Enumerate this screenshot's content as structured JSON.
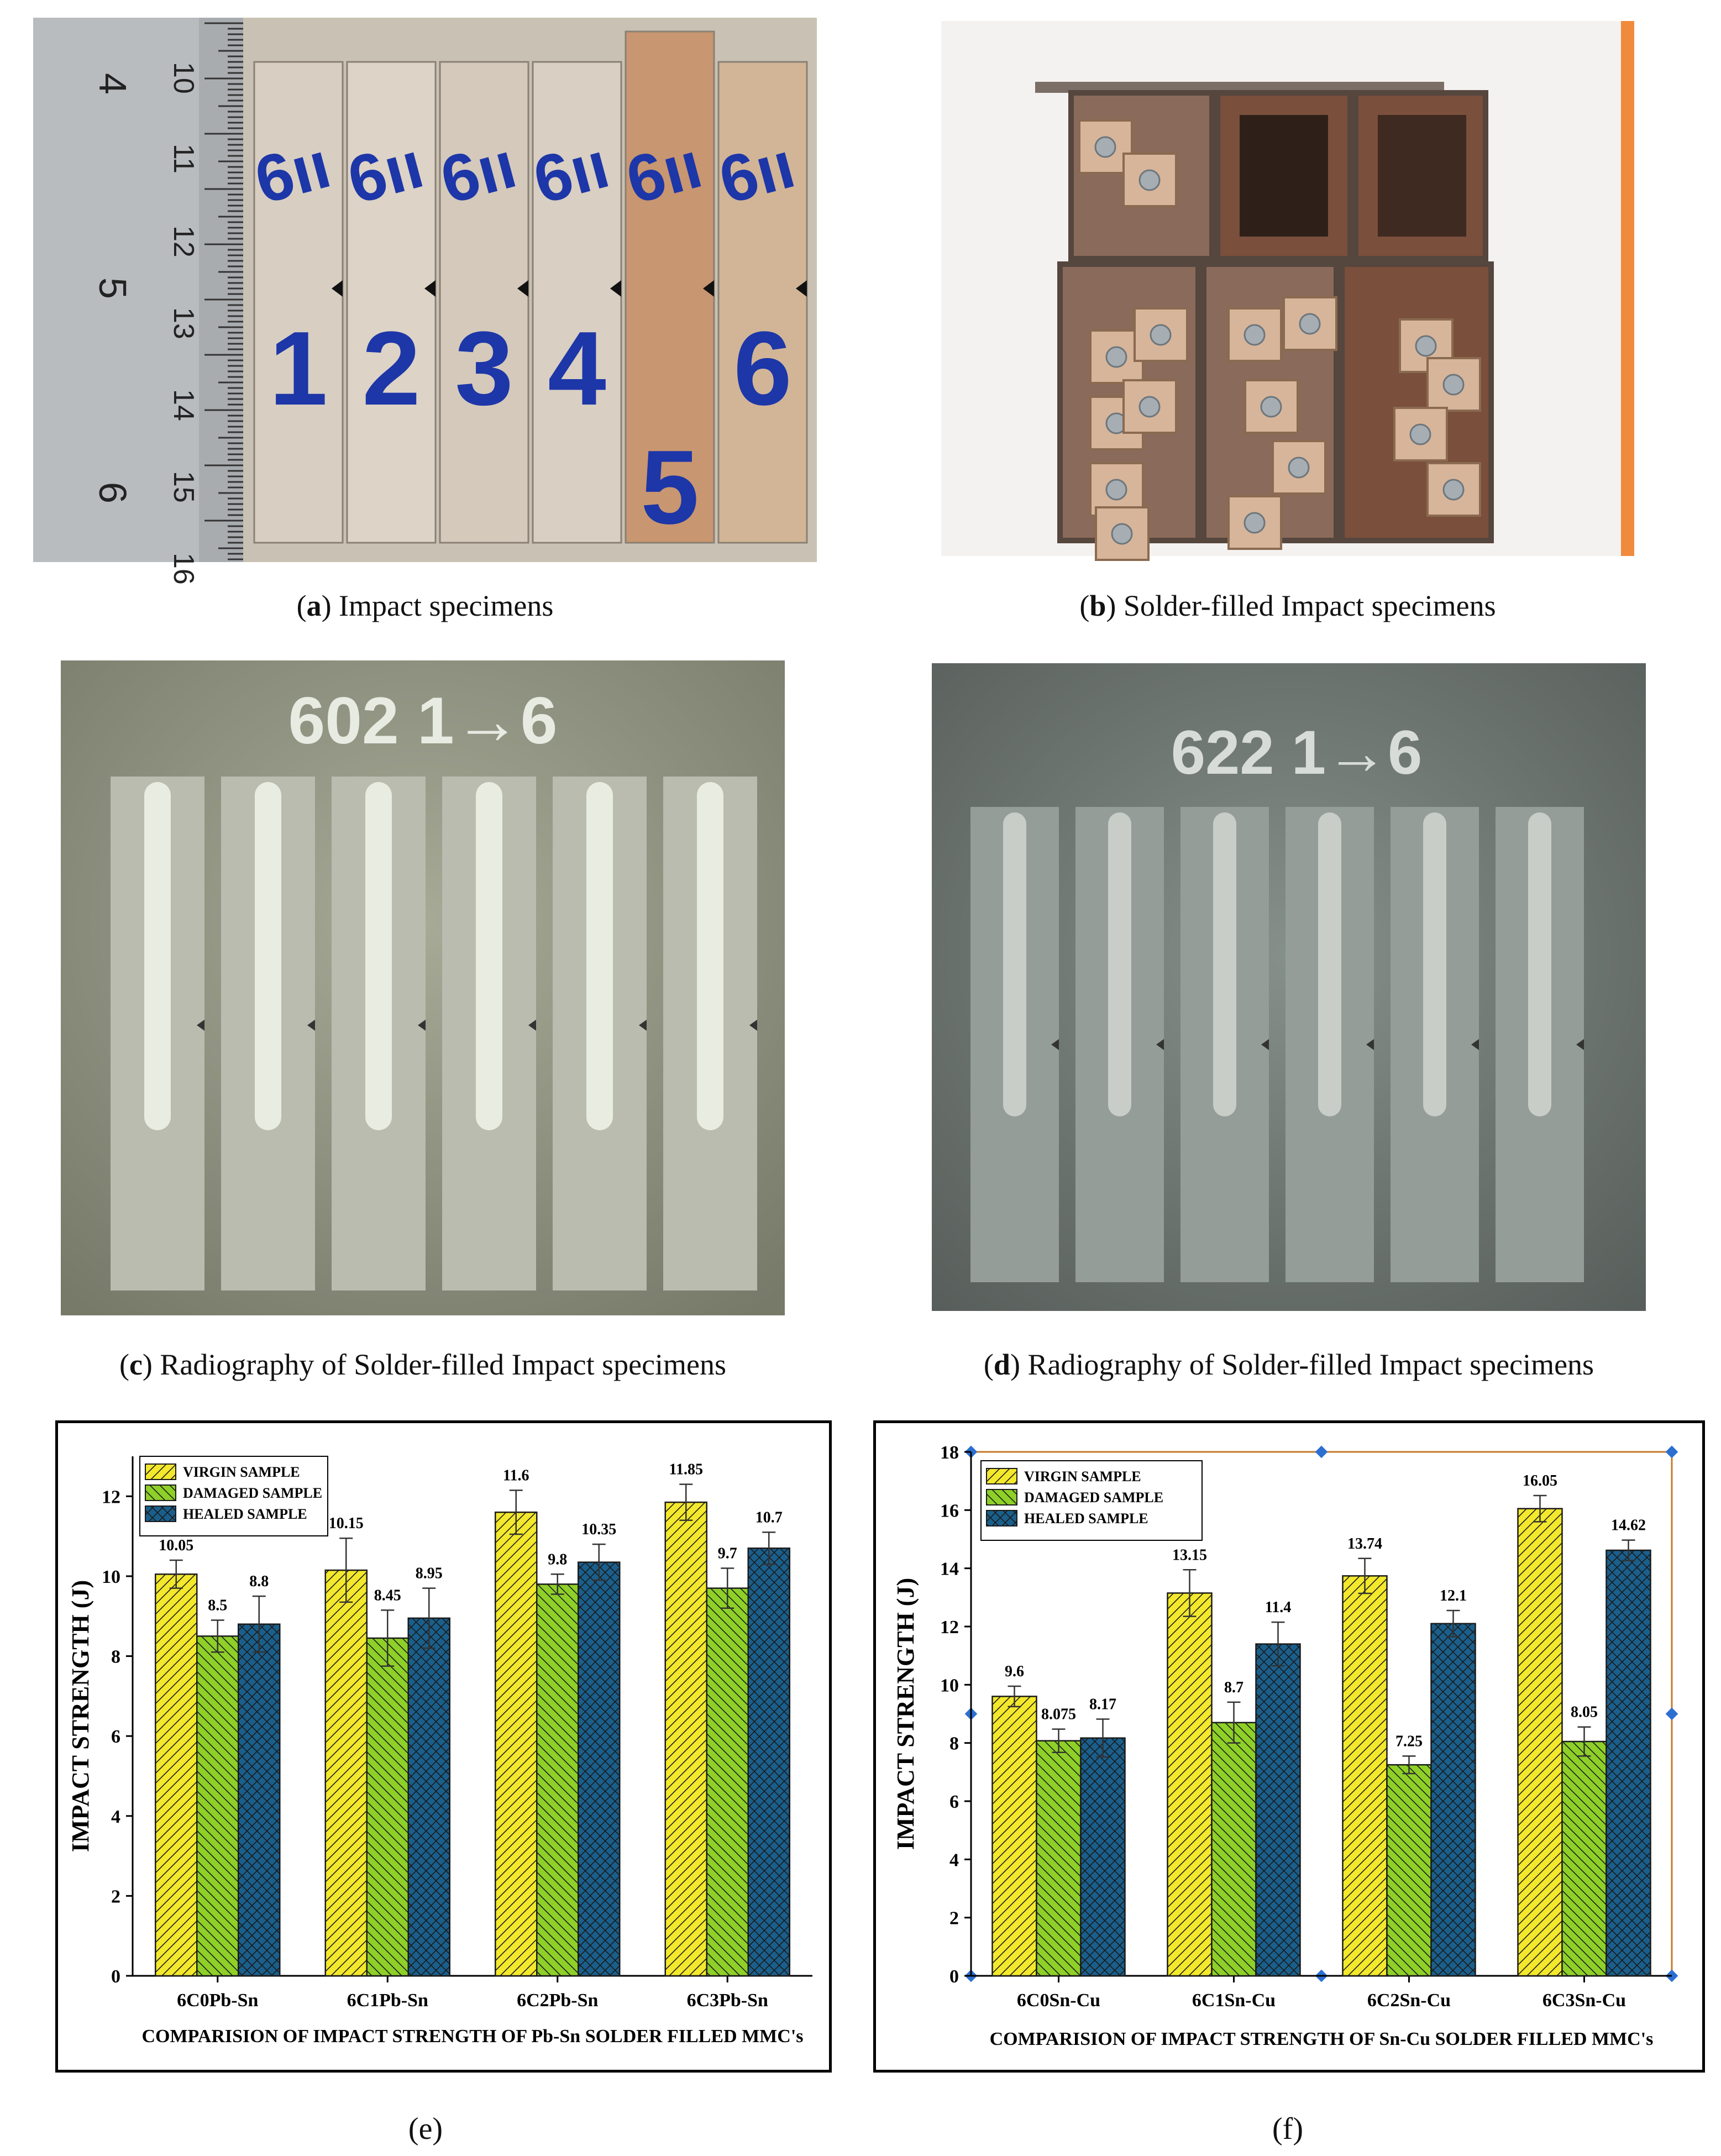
{
  "panels": {
    "a": {
      "letter": "a",
      "caption": "Impact specimens"
    },
    "b": {
      "letter": "b",
      "caption": "Solder-filled Impact specimens"
    },
    "c": {
      "letter": "c",
      "caption": "Radiography of Solder-filled Impact specimens",
      "stamp_text": "602 1→6"
    },
    "d": {
      "letter": "d",
      "caption": "Radiography of Solder-filled Impact specimens",
      "stamp_text": "622 1→6"
    },
    "e": {
      "label": "(e)"
    },
    "f": {
      "label": "(f)"
    }
  },
  "photo_a": {
    "ruler_numbers": [
      "10",
      "11",
      "12",
      "13",
      "14",
      "15",
      "16"
    ],
    "ruler_cm": [
      "4",
      "5",
      "6"
    ],
    "specimen_numbers": [
      "1",
      "2",
      "3",
      "4",
      "5",
      "6"
    ]
  },
  "chart_data": [
    {
      "type": "bar",
      "categories": [
        "6C0Pb-Sn",
        "6C1Pb-Sn",
        "6C2Pb-Sn",
        "6C3Pb-Sn"
      ],
      "series": [
        {
          "name": "VIRGIN SAMPLE",
          "values": [
            10.05,
            10.15,
            11.6,
            11.85
          ],
          "errors": [
            0.35,
            0.8,
            0.55,
            0.45
          ],
          "color": "#f3e82c",
          "pattern": "hatch"
        },
        {
          "name": "DAMAGED SAMPLE",
          "values": [
            8.5,
            8.45,
            9.8,
            9.7
          ],
          "errors": [
            0.4,
            0.7,
            0.25,
            0.5
          ],
          "color": "#8ed028",
          "pattern": "back-hatch"
        },
        {
          "name": "HEALED SAMPLE",
          "values": [
            8.8,
            8.95,
            10.35,
            10.7
          ],
          "errors": [
            0.7,
            0.75,
            0.45,
            0.4
          ],
          "color": "#1a5f8c",
          "pattern": "cross-hatch"
        }
      ],
      "data_labels": [
        [
          "10.05",
          "10.15",
          "11.6",
          "11.85"
        ],
        [
          "8.5",
          "8.45",
          "9.8",
          "9.7"
        ],
        [
          "8.8",
          "8.95",
          "10.35",
          "10.7"
        ]
      ],
      "ylabel": "IMPACT STRENGTH  (J)",
      "xlabel": "COMPARISION OF IMPACT STRENGTH OF Pb-Sn SOLDER FILLED MMC's",
      "ylim": [
        0,
        13
      ],
      "yticks": [
        0,
        2,
        4,
        6,
        8,
        10,
        12
      ],
      "legend_position": "top-left",
      "grid": false
    },
    {
      "type": "bar",
      "categories": [
        "6C0Sn-Cu",
        "6C1Sn-Cu",
        "6C2Sn-Cu",
        "6C3Sn-Cu"
      ],
      "series": [
        {
          "name": "VIRGIN SAMPLE",
          "values": [
            9.6,
            13.15,
            13.74,
            16.05
          ],
          "errors": [
            0.35,
            0.8,
            0.6,
            0.45
          ],
          "color": "#f3e82c",
          "pattern": "hatch"
        },
        {
          "name": "DAMAGED SAMPLE",
          "values": [
            8.075,
            8.7,
            7.25,
            8.05
          ],
          "errors": [
            0.4,
            0.7,
            0.3,
            0.5
          ],
          "color": "#8ed028",
          "pattern": "back-hatch"
        },
        {
          "name": "HEALED SAMPLE",
          "values": [
            8.17,
            11.4,
            12.1,
            14.62
          ],
          "errors": [
            0.65,
            0.75,
            0.45,
            0.35
          ],
          "color": "#1a5f8c",
          "pattern": "cross-hatch"
        }
      ],
      "data_labels": [
        [
          "9.6",
          "13.15",
          "13.74",
          "16.05"
        ],
        [
          "8.075",
          "8.7",
          "7.25",
          "8.05"
        ],
        [
          "8.17",
          "11.4",
          "12.1",
          "14.62"
        ]
      ],
      "ylabel": "IMPACT STRENGTH  (J)",
      "xlabel": "COMPARISION OF IMPACT STRENGTH OF Sn-Cu SOLDER FILLED MMC's",
      "ylim": [
        0,
        18
      ],
      "yticks": [
        0,
        2,
        4,
        6,
        8,
        10,
        12,
        14,
        16,
        18
      ],
      "legend_position": "top-left",
      "grid": false,
      "frame_color": "#c47a2a"
    }
  ]
}
